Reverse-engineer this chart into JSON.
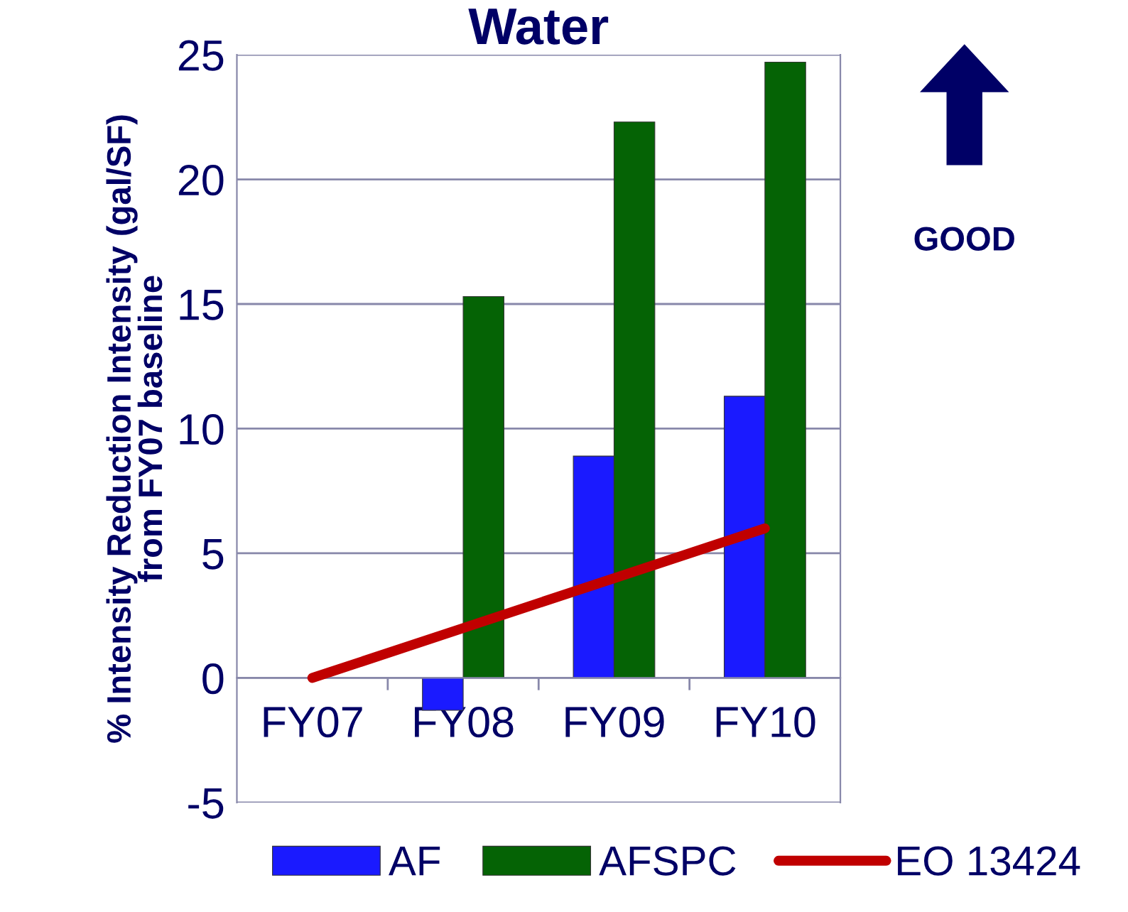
{
  "chart_data": {
    "type": "bar",
    "title": "Water",
    "ylabel": "% Intensity Reduction Intensity (gal/SF)\nfrom FY07 baseline",
    "categories": [
      "FY07",
      "FY08",
      "FY09",
      "FY10"
    ],
    "series": [
      {
        "name": "AF",
        "color": "#1a1aff",
        "values": [
          null,
          -1.3,
          8.9,
          11.3
        ]
      },
      {
        "name": "AFSPC",
        "color": "#056305",
        "values": [
          null,
          15.3,
          22.3,
          24.7
        ]
      },
      {
        "name": "EO 13424",
        "color": "#c00000",
        "type": "line",
        "values": [
          0,
          2,
          4,
          6
        ]
      }
    ],
    "ylim": [
      -5,
      25
    ],
    "yticks": [
      -5,
      0,
      5,
      10,
      15,
      20,
      25
    ],
    "grid": "y",
    "legend": "bottom",
    "annotations": [
      "GOOD"
    ]
  }
}
